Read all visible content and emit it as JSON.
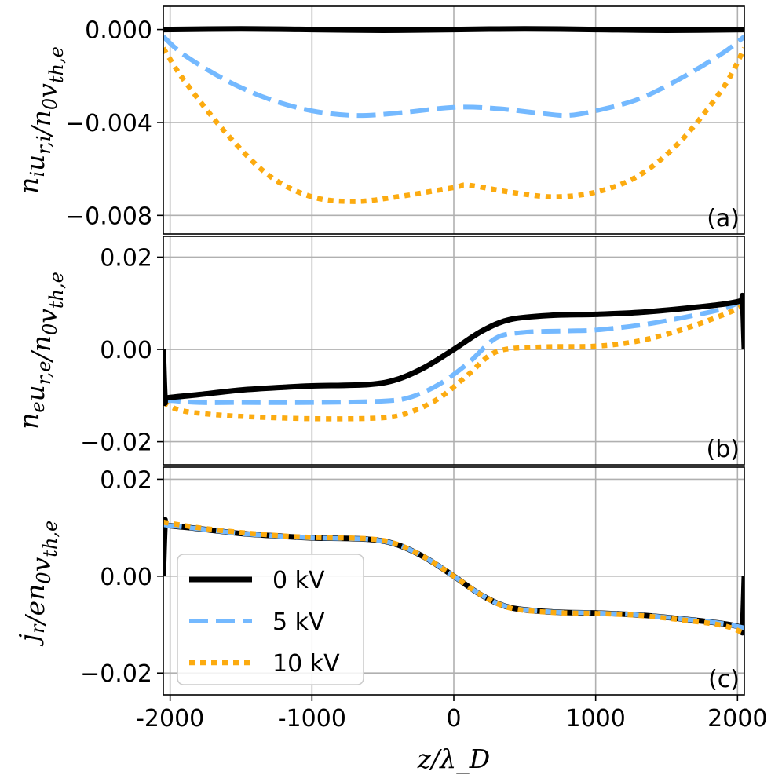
{
  "chart_data": {
    "type": "line",
    "xlabel": "z/λ_D",
    "x_ticks": [
      -2000,
      -1000,
      0,
      1000,
      2000
    ],
    "x_tick_labels": [
      "-2000",
      "-1000",
      "0",
      "1000",
      "2000"
    ],
    "xlim": [
      -2048,
      2048
    ],
    "legend": {
      "location": "lower-left of panel (c)",
      "entries": [
        {
          "label": "0 kV",
          "color": "#000000",
          "style": "solid"
        },
        {
          "label": "5 kV",
          "color": "#74b9ff",
          "style": "dashed"
        },
        {
          "label": "10 kV",
          "color": "#fcab10",
          "style": "dotted"
        }
      ]
    },
    "panels": [
      {
        "id": "a",
        "panel_label": "(a)",
        "ylabel": "n_i u_{r,i} / n_0 v_{th,e}",
        "ylim": [
          -0.0088,
          0.001
        ],
        "y_ticks": [
          0.0,
          -0.004,
          -0.008
        ],
        "y_tick_labels": [
          "0.000",
          "−0.004",
          "−0.008"
        ],
        "series": [
          {
            "name": "0 kV",
            "x": [
              -2048,
              -1500,
              -1000,
              -500,
              0,
              500,
              1000,
              1500,
              2048
            ],
            "y": [
              0.0,
              3e-05,
              0.0,
              -3e-05,
              0.0,
              3e-05,
              0.0,
              -3e-05,
              0.0
            ]
          },
          {
            "name": "5 kV",
            "x": [
              -2048,
              -1900,
              -1600,
              -1300,
              -1000,
              -700,
              -400,
              0,
              300,
              600,
              800,
              1000,
              1300,
              1600,
              1900,
              2048
            ],
            "y": [
              -0.0003,
              -0.0011,
              -0.0022,
              -0.003,
              -0.0035,
              -0.0037,
              -0.0036,
              -0.00335,
              -0.0034,
              -0.0036,
              -0.0037,
              -0.0035,
              -0.003,
              -0.0021,
              -0.001,
              -0.0003
            ]
          },
          {
            "name": "10 kV",
            "x": [
              -2048,
              -1900,
              -1600,
              -1300,
              -1000,
              -700,
              -400,
              0,
              100,
              400,
              700,
              1000,
              1300,
              1600,
              1900,
              2048
            ],
            "y": [
              -0.0008,
              -0.0022,
              -0.0045,
              -0.0063,
              -0.0072,
              -0.0074,
              -0.0072,
              -0.0068,
              -0.0067,
              -0.007,
              -0.0072,
              -0.007,
              -0.0063,
              -0.0048,
              -0.0025,
              -0.0008
            ]
          }
        ]
      },
      {
        "id": "b",
        "panel_label": "(b)",
        "ylabel": "n_e u_{r,e} / n_0 v_{th,e}",
        "ylim": [
          -0.025,
          0.0245
        ],
        "y_ticks": [
          0.02,
          0.0,
          -0.02
        ],
        "y_tick_labels": [
          "0.02",
          "0.00",
          "−0.02"
        ],
        "series": [
          {
            "name": "0 kV",
            "x": [
              -2048,
              -2035,
              -2020,
              -1800,
              -1500,
              -1200,
              -1000,
              -600,
              -400,
              -200,
              0,
              200,
              400,
              700,
              1000,
              1300,
              1600,
              1900,
              2020,
              2035,
              2048
            ],
            "y": [
              0.0,
              -0.011,
              -0.0105,
              -0.0098,
              -0.0088,
              -0.0082,
              -0.0079,
              -0.0076,
              -0.0065,
              -0.0038,
              0.0,
              0.004,
              0.0065,
              0.0074,
              0.0076,
              0.008,
              0.0088,
              0.0098,
              0.0105,
              0.011,
              0.0
            ]
          },
          {
            "name": "5 kV",
            "x": [
              -2048,
              -2035,
              -2020,
              -1800,
              -1500,
              -1000,
              -500,
              -300,
              -100,
              100,
              300,
              500,
              800,
              1000,
              1300,
              1600,
              1900,
              2030,
              2048
            ],
            "y": [
              -0.011,
              -0.011,
              -0.011,
              -0.0115,
              -0.0115,
              -0.0115,
              -0.0112,
              -0.0103,
              -0.0075,
              -0.003,
              0.0025,
              0.0037,
              0.004,
              0.0042,
              0.0052,
              0.0068,
              0.0088,
              0.0105,
              0.0105
            ]
          },
          {
            "name": "10 kV",
            "x": [
              -2048,
              -1950,
              -1800,
              -1500,
              -1000,
              -500,
              -300,
              -100,
              100,
              300,
              600,
              1000,
              1300,
              1600,
              1900,
              2048
            ],
            "y": [
              -0.0115,
              -0.013,
              -0.0138,
              -0.0145,
              -0.015,
              -0.0148,
              -0.0135,
              -0.0105,
              -0.0055,
              -0.0005,
              0.0005,
              0.0007,
              0.0018,
              0.0042,
              0.0075,
              0.0095
            ]
          }
        ]
      },
      {
        "id": "c",
        "panel_label": "(c)",
        "ylabel": "j_r / e n_0 v_{th,e}",
        "ylim": [
          -0.0245,
          0.0225
        ],
        "y_ticks": [
          0.02,
          0.0,
          -0.02
        ],
        "y_tick_labels": [
          "0.02",
          "0.00",
          "−0.02"
        ],
        "series": [
          {
            "name": "0 kV",
            "x": [
              -2048,
              -2035,
              -2020,
              -1800,
              -1500,
              -1200,
              -1000,
              -600,
              -400,
              -200,
              0,
              200,
              400,
              700,
              1000,
              1300,
              1600,
              1900,
              2020,
              2035,
              2048
            ],
            "y": [
              0.0,
              0.011,
              0.0105,
              0.0098,
              0.0088,
              0.0082,
              0.0079,
              0.0076,
              0.0065,
              0.0038,
              0.0,
              -0.004,
              -0.0065,
              -0.0074,
              -0.0076,
              -0.008,
              -0.0088,
              -0.0098,
              -0.0105,
              -0.011,
              0.0
            ]
          },
          {
            "name": "5 kV",
            "x": [
              -2048,
              -2020,
              -1800,
              -1500,
              -1200,
              -1000,
              -600,
              -400,
              -200,
              0,
              200,
              400,
              700,
              1000,
              1300,
              1600,
              1900,
              2048
            ],
            "y": [
              0.0107,
              0.0105,
              0.0098,
              0.0088,
              0.0082,
              0.0079,
              0.0076,
              0.0065,
              0.0038,
              0.0,
              -0.004,
              -0.0065,
              -0.0074,
              -0.0076,
              -0.008,
              -0.0088,
              -0.0098,
              -0.0107
            ]
          },
          {
            "name": "10 kV",
            "x": [
              -2048,
              -2020,
              -1800,
              -1500,
              -1200,
              -1000,
              -600,
              -400,
              -200,
              0,
              200,
              400,
              700,
              1000,
              1300,
              1600,
              1900,
              2048
            ],
            "y": [
              0.0112,
              0.011,
              0.01,
              0.009,
              0.0083,
              0.008,
              0.0077,
              0.0066,
              0.0038,
              0.0,
              -0.004,
              -0.0066,
              -0.0075,
              -0.0077,
              -0.0081,
              -0.009,
              -0.0102,
              -0.0118
            ]
          }
        ]
      }
    ]
  }
}
